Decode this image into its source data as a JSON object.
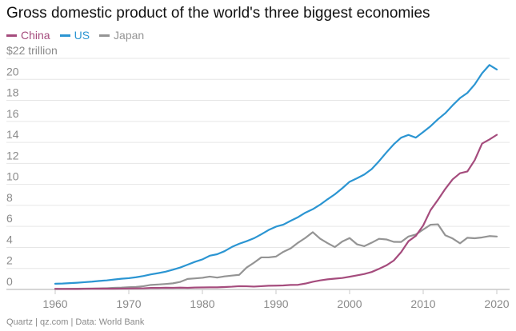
{
  "title": "Gross domestic product of the world's three biggest economies",
  "legend": [
    {
      "name": "China",
      "color": "#a54c7d"
    },
    {
      "name": "US",
      "color": "#2b95d2"
    },
    {
      "name": "Japan",
      "color": "#949494"
    }
  ],
  "footer": "Quartz | qz.com | Data: World Bank",
  "chart_data": {
    "type": "line",
    "title": "Gross domestic product of the world's three biggest economies",
    "xlabel": "",
    "ylabel": "$22 trillion",
    "xlim": [
      1960,
      2020
    ],
    "ylim": [
      0,
      22
    ],
    "x_ticks": [
      "1960",
      "1970",
      "1980",
      "1990",
      "2000",
      "2010",
      "2020"
    ],
    "y_ticks": [
      "$22 trillion",
      "20",
      "18",
      "16",
      "14",
      "12",
      "10",
      "8",
      "6",
      "4",
      "2",
      "0"
    ],
    "grid": true,
    "legend_position": "top-left",
    "x": [
      1960,
      1961,
      1962,
      1963,
      1964,
      1965,
      1966,
      1967,
      1968,
      1969,
      1970,
      1971,
      1972,
      1973,
      1974,
      1975,
      1976,
      1977,
      1978,
      1979,
      1980,
      1981,
      1982,
      1983,
      1984,
      1985,
      1986,
      1987,
      1988,
      1989,
      1990,
      1991,
      1992,
      1993,
      1994,
      1995,
      1996,
      1997,
      1998,
      1999,
      2000,
      2001,
      2002,
      2003,
      2004,
      2005,
      2006,
      2007,
      2008,
      2009,
      2010,
      2011,
      2012,
      2013,
      2014,
      2015,
      2016,
      2017,
      2018,
      2019,
      2020
    ],
    "series": [
      {
        "name": "China",
        "color": "#a54c7d",
        "values": [
          0.06,
          0.05,
          0.05,
          0.05,
          0.06,
          0.07,
          0.08,
          0.07,
          0.07,
          0.08,
          0.09,
          0.1,
          0.11,
          0.14,
          0.14,
          0.16,
          0.15,
          0.17,
          0.15,
          0.18,
          0.19,
          0.2,
          0.2,
          0.23,
          0.26,
          0.31,
          0.3,
          0.27,
          0.31,
          0.35,
          0.36,
          0.38,
          0.43,
          0.44,
          0.56,
          0.73,
          0.86,
          0.96,
          1.03,
          1.09,
          1.21,
          1.34,
          1.47,
          1.66,
          1.96,
          2.29,
          2.75,
          3.55,
          4.59,
          5.1,
          6.09,
          7.55,
          8.53,
          9.57,
          10.48,
          11.06,
          11.23,
          12.31,
          13.89,
          14.28,
          14.72
        ]
      },
      {
        "name": "US",
        "color": "#2b95d2",
        "values": [
          0.54,
          0.56,
          0.6,
          0.64,
          0.69,
          0.74,
          0.81,
          0.86,
          0.94,
          1.02,
          1.07,
          1.16,
          1.28,
          1.43,
          1.55,
          1.69,
          1.88,
          2.09,
          2.36,
          2.63,
          2.86,
          3.21,
          3.35,
          3.64,
          4.04,
          4.35,
          4.59,
          4.87,
          5.25,
          5.66,
          5.98,
          6.17,
          6.54,
          6.88,
          7.31,
          7.64,
          8.07,
          8.58,
          9.06,
          9.63,
          10.25,
          10.58,
          10.94,
          11.46,
          12.21,
          13.04,
          13.82,
          14.45,
          14.71,
          14.45,
          14.99,
          15.54,
          16.2,
          16.78,
          17.53,
          18.22,
          18.71,
          19.52,
          20.58,
          21.37,
          20.94
        ]
      },
      {
        "name": "Japan",
        "color": "#949494",
        "values": [
          0.04,
          0.05,
          0.06,
          0.07,
          0.08,
          0.09,
          0.1,
          0.12,
          0.15,
          0.17,
          0.21,
          0.24,
          0.31,
          0.43,
          0.47,
          0.52,
          0.58,
          0.72,
          1.0,
          1.05,
          1.11,
          1.22,
          1.13,
          1.24,
          1.32,
          1.39,
          2.08,
          2.54,
          3.05,
          3.05,
          3.13,
          3.58,
          3.91,
          4.45,
          4.91,
          5.45,
          4.83,
          4.41,
          4.03,
          4.56,
          4.89,
          4.3,
          4.12,
          4.45,
          4.82,
          4.76,
          4.53,
          4.52,
          5.04,
          5.23,
          5.7,
          6.16,
          6.2,
          5.16,
          4.85,
          4.39,
          4.92,
          4.87,
          4.95,
          5.08,
          5.04
        ]
      }
    ]
  }
}
